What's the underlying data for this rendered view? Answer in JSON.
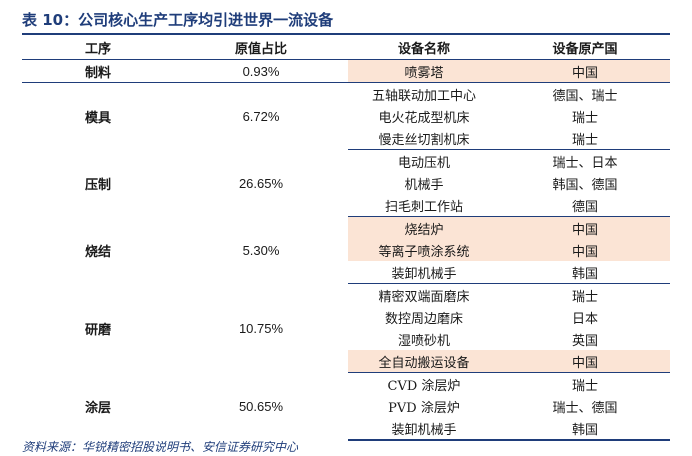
{
  "title": "表 10：公司核心生产工序均引进世界一流设备",
  "headers": {
    "process": "工序",
    "share": "原值占比",
    "equipment": "设备名称",
    "origin": "设备原产国"
  },
  "groups": [
    {
      "process": "制料",
      "share": "0.93%",
      "items": [
        {
          "name": "喷雾塔",
          "origin": "中国",
          "highlight": true
        }
      ]
    },
    {
      "process": "模具",
      "share": "6.72%",
      "items": [
        {
          "name": "五轴联动加工中心",
          "origin": "德国、瑞士",
          "highlight": false
        },
        {
          "name": "电火花成型机床",
          "origin": "瑞士",
          "highlight": false
        },
        {
          "name": "慢走丝切割机床",
          "origin": "瑞士",
          "highlight": false
        }
      ]
    },
    {
      "process": "压制",
      "share": "26.65%",
      "items": [
        {
          "name": "电动压机",
          "origin": "瑞士、日本",
          "highlight": false
        },
        {
          "name": "机械手",
          "origin": "韩国、德国",
          "highlight": false
        },
        {
          "name": "扫毛刺工作站",
          "origin": "德国",
          "highlight": false
        }
      ]
    },
    {
      "process": "烧结",
      "share": "5.30%",
      "items": [
        {
          "name": "烧结炉",
          "origin": "中国",
          "highlight": true
        },
        {
          "name": "等离子喷涂系统",
          "origin": "中国",
          "highlight": true
        },
        {
          "name": "装卸机械手",
          "origin": "韩国",
          "highlight": false
        }
      ]
    },
    {
      "process": "研磨",
      "share": "10.75%",
      "items": [
        {
          "name": "精密双端面磨床",
          "origin": "瑞士",
          "highlight": false
        },
        {
          "name": "数控周边磨床",
          "origin": "日本",
          "highlight": false
        },
        {
          "name": "湿喷砂机",
          "origin": "英国",
          "highlight": false
        },
        {
          "name": "全自动搬运设备",
          "origin": "中国",
          "highlight": true
        }
      ]
    },
    {
      "process": "涂层",
      "share": "50.65%",
      "items": [
        {
          "name": "CVD 涂层炉",
          "origin": "瑞士",
          "highlight": false
        },
        {
          "name": "PVD 涂层炉",
          "origin": "瑞士、德国",
          "highlight": false
        },
        {
          "name": "装卸机械手",
          "origin": "韩国",
          "highlight": false
        }
      ]
    }
  ],
  "source": "资料来源：华锐精密招股说明书、安信证券研究中心",
  "colors": {
    "rule": "#1f3d7a",
    "highlight": "#fbe4d5"
  }
}
